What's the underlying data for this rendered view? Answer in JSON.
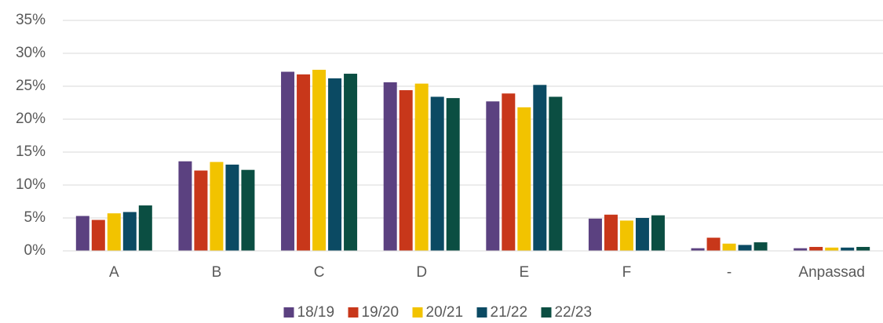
{
  "chart_data": {
    "type": "bar",
    "categories": [
      "A",
      "B",
      "C",
      "D",
      "E",
      "F",
      "-",
      "Anpassad"
    ],
    "series": [
      {
        "name": "18/19",
        "color": "#5b4180",
        "values": [
          5.3,
          13.6,
          27.2,
          25.6,
          22.7,
          4.9,
          0.4,
          0.4
        ]
      },
      {
        "name": "19/20",
        "color": "#c8371a",
        "values": [
          4.7,
          12.2,
          26.8,
          24.4,
          23.9,
          5.5,
          2.0,
          0.6
        ]
      },
      {
        "name": "20/21",
        "color": "#f2c300",
        "values": [
          5.7,
          13.5,
          27.5,
          25.4,
          21.8,
          4.6,
          1.1,
          0.5
        ]
      },
      {
        "name": "21/22",
        "color": "#0b4a63",
        "values": [
          5.9,
          13.1,
          26.2,
          23.4,
          25.2,
          5.0,
          0.9,
          0.5
        ]
      },
      {
        "name": "22/23",
        "color": "#0b4e42",
        "values": [
          6.9,
          12.3,
          26.9,
          23.2,
          23.4,
          5.4,
          1.3,
          0.6
        ]
      }
    ],
    "ylim": [
      0,
      35
    ],
    "yticks": [
      {
        "value": 0,
        "label": "0%"
      },
      {
        "value": 5,
        "label": "5%"
      },
      {
        "value": 10,
        "label": "10%"
      },
      {
        "value": 15,
        "label": "15%"
      },
      {
        "value": 20,
        "label": "20%"
      },
      {
        "value": 25,
        "label": "25%"
      },
      {
        "value": 30,
        "label": "30%"
      },
      {
        "value": 35,
        "label": "35%"
      }
    ],
    "grid": true,
    "legend": "bottom"
  }
}
